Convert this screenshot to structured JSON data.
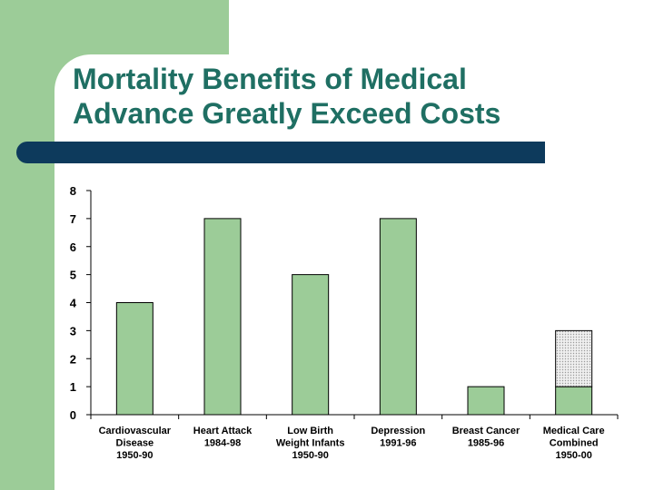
{
  "slide": {
    "title_line1": "Mortality Benefits of Medical",
    "title_line2": "Advance Greatly Exceed Costs"
  },
  "colors": {
    "accent_green": "#9ccc98",
    "title_color": "#1f6f63",
    "rule_color": "#0d3a5c",
    "bar_fill": "#9ccc98",
    "stack_fill": "#e8e8e8"
  },
  "chart_data": {
    "type": "bar",
    "title": "",
    "xlabel": "",
    "ylabel": "",
    "ylim": [
      0,
      8
    ],
    "yticks": [
      0,
      1,
      2,
      3,
      4,
      5,
      6,
      7,
      8
    ],
    "grid": false,
    "legend": "none",
    "categories": [
      [
        "Cardiovascular",
        "Disease",
        "1950-90"
      ],
      [
        "Heart Attack",
        "1984-98"
      ],
      [
        "Low Birth",
        "Weight Infants",
        "1950-90"
      ],
      [
        "Depression",
        "1991-96"
      ],
      [
        "Breast Cancer",
        "1985-96"
      ],
      [
        "Medical Care",
        "Combined",
        "1950-00"
      ]
    ],
    "series": [
      {
        "values": [
          4,
          7,
          5,
          7,
          1,
          1
        ],
        "color": "#9ccc98",
        "pattern": "solid"
      },
      {
        "values": [
          0,
          0,
          0,
          0,
          0,
          2
        ],
        "color": "#e8e8e8",
        "pattern": "dotted"
      }
    ]
  }
}
